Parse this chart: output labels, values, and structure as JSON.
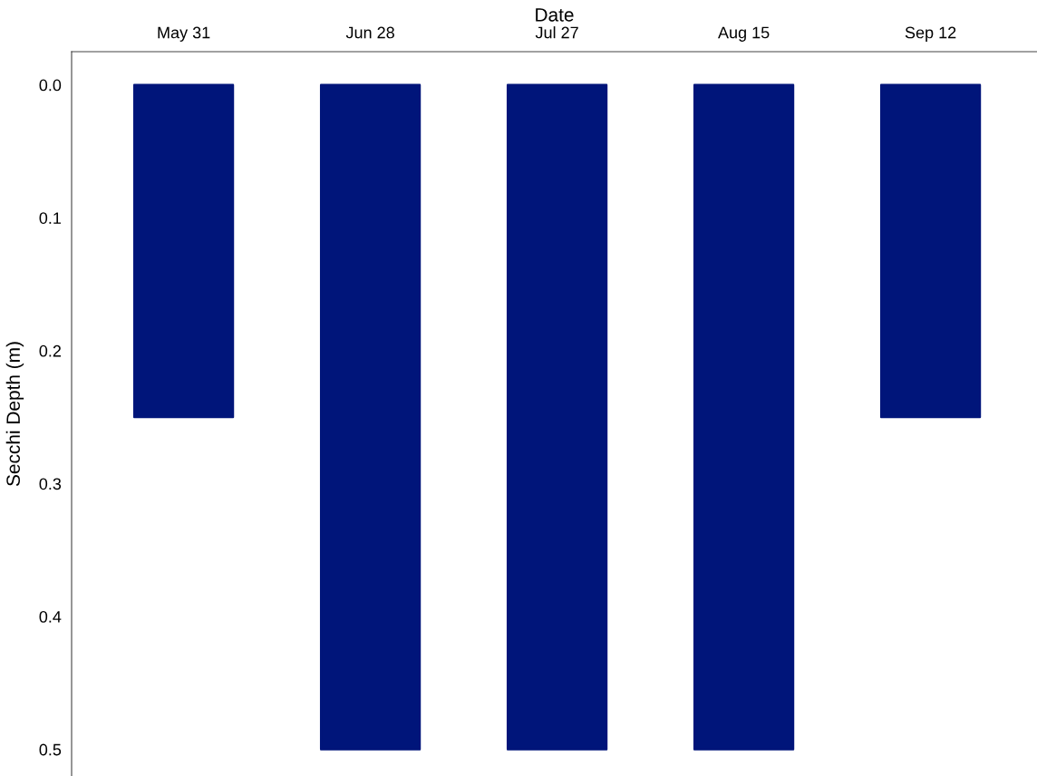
{
  "chart_data": {
    "type": "bar",
    "xlabel": "Date",
    "ylabel": "Secchi Depth (m)",
    "categories": [
      "May 31",
      "Jun 28",
      "Jul 27",
      "Aug 15",
      "Sep 12"
    ],
    "values": [
      0.25,
      0.5,
      0.5,
      0.5,
      0.25
    ],
    "color": "#00157a",
    "ylim": [
      0.52,
      -0.025
    ],
    "yticks": [
      {
        "value": 0,
        "label": "0.0"
      },
      0.1,
      0.2,
      0.3,
      0.4,
      0.5
    ]
  }
}
